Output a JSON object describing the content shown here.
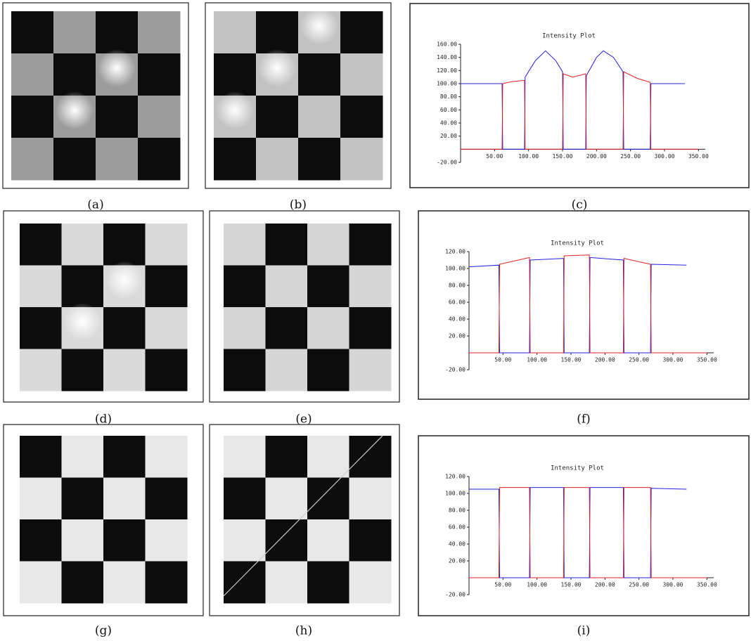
{
  "panels": [
    {
      "caption": "(a)"
    },
    {
      "caption": "(b)"
    },
    {
      "caption": "(c)"
    },
    {
      "caption": "(d)"
    },
    {
      "caption": "(e)"
    },
    {
      "caption": "(f)"
    },
    {
      "caption": "(g)"
    },
    {
      "caption": "(h)"
    },
    {
      "caption": "(i)"
    }
  ],
  "chart_data": [
    {
      "type": "line",
      "title": "Intensity Plot",
      "x": [
        0,
        30,
        61,
        62,
        75,
        94,
        95,
        110,
        125,
        140,
        150,
        151,
        165,
        184,
        185,
        200,
        210,
        225,
        239,
        240,
        260,
        279,
        280,
        300,
        330,
        350
      ],
      "series": [
        {
          "color": "#2020e0",
          "values": [
            100,
            100,
            100,
            0,
            0,
            0,
            110,
            135,
            150,
            135,
            118,
            0,
            0,
            0,
            112,
            140,
            150,
            140,
            118,
            0,
            0,
            0,
            100,
            100,
            100,
            null
          ]
        },
        {
          "color": "#e02020",
          "values": [
            0,
            0,
            0,
            100,
            103,
            105,
            0,
            0,
            0,
            0,
            0,
            115,
            110,
            115,
            0,
            0,
            0,
            0,
            0,
            118,
            108,
            102,
            0,
            0,
            0,
            0
          ]
        }
      ],
      "xlim": [
        0,
        360
      ],
      "xticks": [
        {
          "value": 50,
          "label": "50.00"
        },
        {
          "value": 100,
          "label": "100.00"
        },
        {
          "value": 150,
          "label": "150.00"
        },
        {
          "value": 200,
          "label": "200.00"
        },
        {
          "value": 250,
          "label": "250.00"
        },
        {
          "value": 300,
          "label": "300.00"
        },
        {
          "value": 350,
          "label": "350.00"
        }
      ],
      "ylim": [
        -20,
        160
      ],
      "yticks": [
        {
          "value": -20,
          "label": "-20.00"
        },
        {
          "value": 20,
          "label": "20.00"
        },
        {
          "value": 40,
          "label": "40.00"
        },
        {
          "value": 60,
          "label": "60.00"
        },
        {
          "value": 80,
          "label": "80.00"
        },
        {
          "value": 100,
          "label": "100.00"
        },
        {
          "value": 120,
          "label": "120.00"
        },
        {
          "value": 140,
          "label": "140.00"
        },
        {
          "value": 160,
          "label": "160.00"
        }
      ]
    },
    {
      "type": "line",
      "title": "Intensity Plot",
      "x": [
        0,
        44,
        45,
        89,
        90,
        139,
        140,
        177,
        178,
        227,
        228,
        267,
        268,
        320,
        350
      ],
      "series": [
        {
          "color": "#2020e0",
          "values": [
            102,
            104,
            0,
            0,
            110,
            112,
            0,
            0,
            113,
            110,
            0,
            0,
            105,
            104,
            null
          ]
        },
        {
          "color": "#e02020",
          "values": [
            0,
            0,
            105,
            113,
            0,
            0,
            115,
            116,
            0,
            0,
            112,
            105,
            0,
            0,
            0
          ]
        }
      ],
      "xlim": [
        0,
        360
      ],
      "xticks": [
        {
          "value": 50,
          "label": "50.00"
        },
        {
          "value": 100,
          "label": "100.00"
        },
        {
          "value": 150,
          "label": "150.00"
        },
        {
          "value": 200,
          "label": "200.00"
        },
        {
          "value": 250,
          "label": "250.00"
        },
        {
          "value": 300,
          "label": "300.00"
        },
        {
          "value": 350,
          "label": "350.00"
        }
      ],
      "ylim": [
        -20,
        120
      ],
      "yticks": [
        {
          "value": -20,
          "label": "-20.00"
        },
        {
          "value": 20,
          "label": "20.00"
        },
        {
          "value": 40,
          "label": "40.00"
        },
        {
          "value": 60,
          "label": "60.00"
        },
        {
          "value": 80,
          "label": "80.00"
        },
        {
          "value": 100,
          "label": "100.00"
        },
        {
          "value": 120,
          "label": "120.00"
        }
      ]
    },
    {
      "type": "line",
      "title": "Intensity Plot",
      "x": [
        0,
        44,
        45,
        89,
        90,
        139,
        140,
        177,
        178,
        227,
        228,
        267,
        268,
        320,
        350
      ],
      "series": [
        {
          "color": "#2020e0",
          "values": [
            105,
            105,
            0,
            0,
            107,
            107,
            0,
            0,
            107,
            107,
            0,
            0,
            106,
            105,
            null
          ]
        },
        {
          "color": "#e02020",
          "values": [
            0,
            0,
            107,
            107,
            0,
            0,
            107,
            107,
            0,
            0,
            107,
            107,
            0,
            0,
            0
          ]
        }
      ],
      "xlim": [
        0,
        360
      ],
      "xticks": [
        {
          "value": 50,
          "label": "50.00"
        },
        {
          "value": 100,
          "label": "100.00"
        },
        {
          "value": 150,
          "label": "150.00"
        },
        {
          "value": 200,
          "label": "200.00"
        },
        {
          "value": 250,
          "label": "250.00"
        },
        {
          "value": 300,
          "label": "300.00"
        },
        {
          "value": 350,
          "label": "350.00"
        }
      ],
      "ylim": [
        -20,
        120
      ],
      "yticks": [
        {
          "value": -20,
          "label": "-20.00"
        },
        {
          "value": 20,
          "label": "20.00"
        },
        {
          "value": 40,
          "label": "40.00"
        },
        {
          "value": 60,
          "label": "60.00"
        },
        {
          "value": 80,
          "label": "80.00"
        },
        {
          "value": 100,
          "label": "100.00"
        },
        {
          "value": 120,
          "label": "120.00"
        }
      ]
    }
  ]
}
